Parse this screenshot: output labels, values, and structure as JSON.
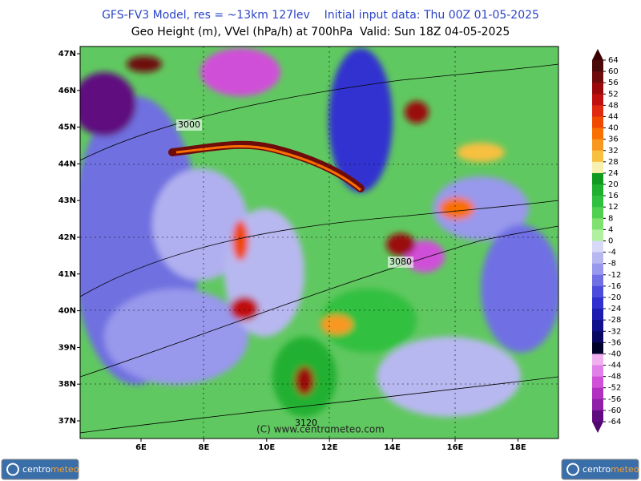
{
  "header": {
    "title": "GFS-FV3 Model, res = ~13km 127lev    Initial input data: Thu 00Z 01-05-2025",
    "subtitle": "Geo Height (m), VVel (hPa/h) at 700hPa  Valid: Sun 18Z 04-05-2025"
  },
  "map": {
    "latitude_labels": [
      "47N",
      "46N",
      "45N",
      "44N",
      "43N",
      "42N",
      "41N",
      "40N",
      "39N",
      "38N",
      "37N"
    ],
    "longitude_labels": [
      "6E",
      "8E",
      "10E",
      "12E",
      "14E",
      "16E",
      "18E"
    ],
    "contour_labels": [
      "3000",
      "3080",
      "3120"
    ],
    "watermark": "(C) www.centrometeo.com"
  },
  "colorbar": {
    "levels": [
      64,
      60,
      56,
      52,
      48,
      44,
      40,
      36,
      32,
      28,
      24,
      20,
      16,
      12,
      8,
      4,
      0,
      -4,
      -8,
      -12,
      -16,
      -20,
      -24,
      -28,
      -32,
      -36,
      -40,
      -44,
      -48,
      -52,
      -56,
      -60,
      -64
    ],
    "colors": [
      "#4a0a0a",
      "#6e0c0c",
      "#9a0a0a",
      "#c01010",
      "#e02a10",
      "#f04a00",
      "#f87000",
      "#f89820",
      "#f8c040",
      "#f8f0b0",
      "#109a20",
      "#20b030",
      "#30c040",
      "#50d050",
      "#80e070",
      "#b0f0a0",
      "#d8d8f8",
      "#b8b8f0",
      "#9898ec",
      "#7070e4",
      "#4c4cdc",
      "#3030d0",
      "#1c1cb0",
      "#10108c",
      "#080860",
      "#000028",
      "#f0b0f0",
      "#e080e8",
      "#d050d8",
      "#b030c0",
      "#9020a8",
      "#600c80"
    ],
    "over_color": "#3a0000",
    "under_color": "#500870"
  },
  "logo": {
    "part1": "centro",
    "part2": "meteo"
  }
}
